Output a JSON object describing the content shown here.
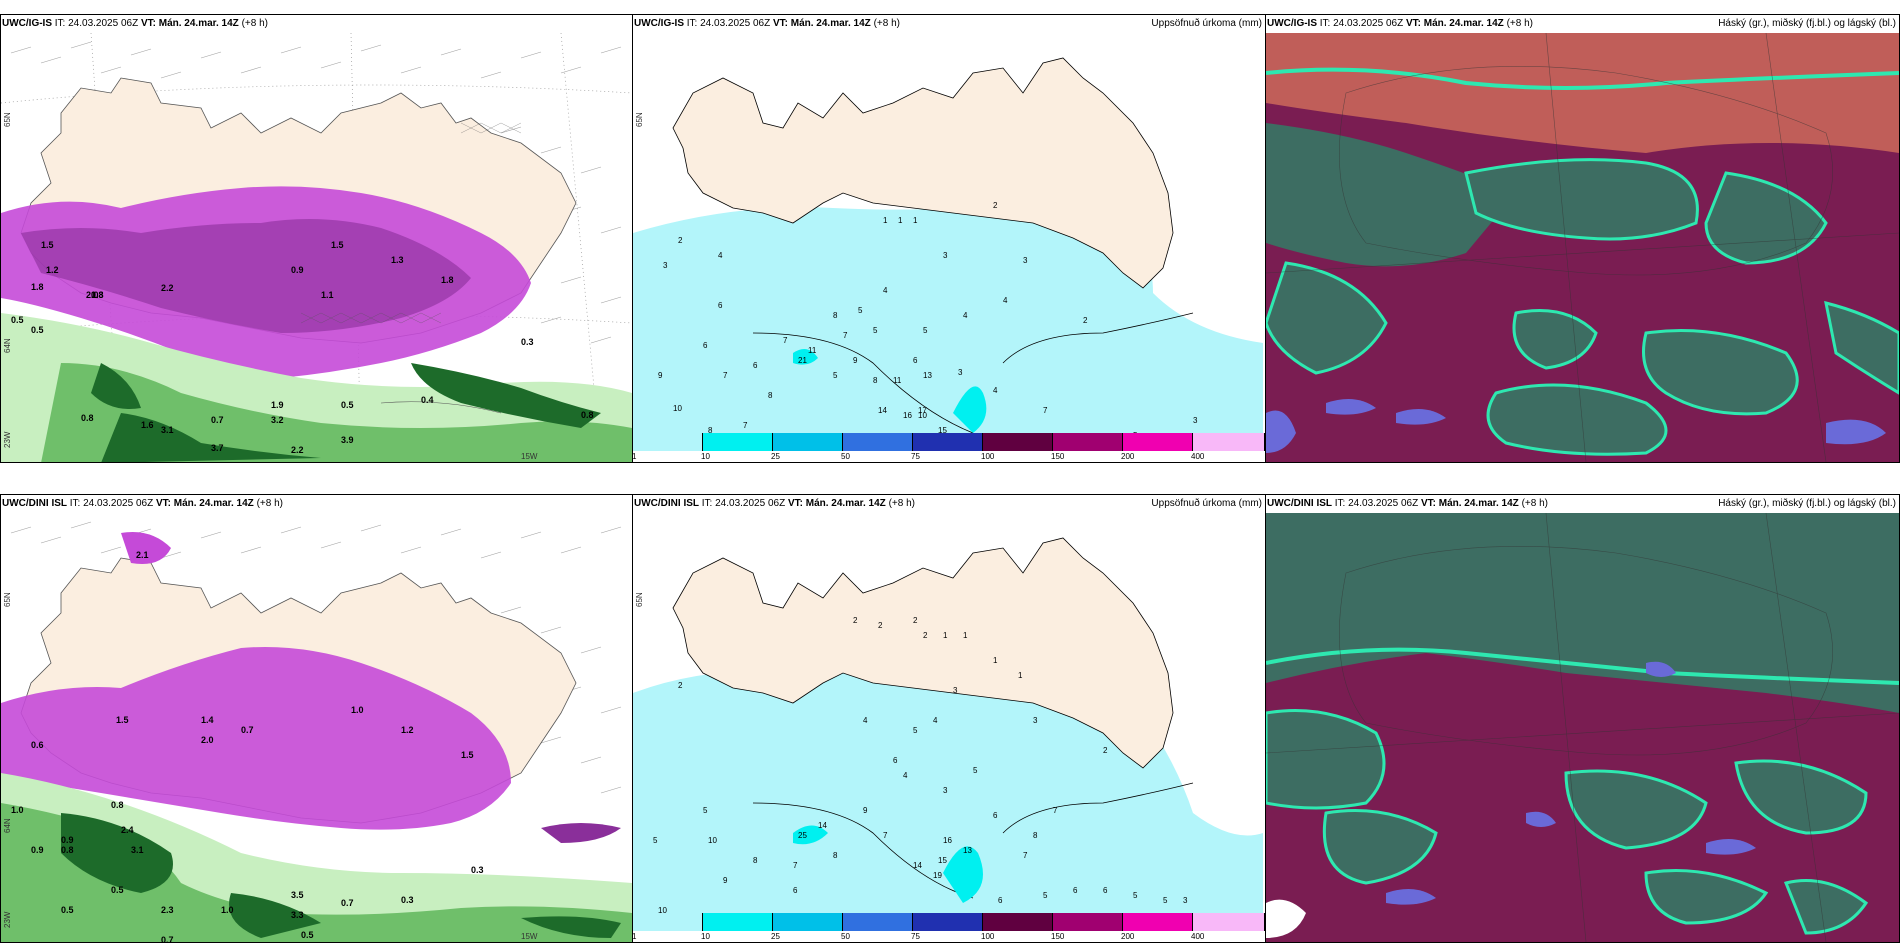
{
  "panels": [
    {
      "id": "p1",
      "model": "UWC/IG-IS",
      "it_label": "IT:",
      "it": "24.03.2025 06Z",
      "vt_label": "VT:",
      "vt": "Mán. 24.mar. 14Z",
      "lead": "(+8 h)",
      "right_title": "",
      "lat_label": "65N",
      "lat_label2": "64N",
      "lon_label": "15W",
      "lat_label3": "23W"
    },
    {
      "id": "p2",
      "model": "UWC/IG-IS",
      "it_label": "IT:",
      "it": "24.03.2025 06Z",
      "vt_label": "VT:",
      "vt": "Mán. 24.mar. 14Z",
      "lead": "(+8 h)",
      "right_title": "Uppsöfnuð úrkoma (mm)",
      "lat_label": "65N"
    },
    {
      "id": "p3",
      "model": "UWC/IG-IS",
      "it_label": "IT:",
      "it": "24.03.2025 06Z",
      "vt_label": "VT:",
      "vt": "Mán. 24.mar. 14Z",
      "lead": "(+8 h)",
      "right_title": "Háský (gr.), miðský (fj.bl.) og lágský (bl.)"
    },
    {
      "id": "p4",
      "model": "UWC/DINI ISL",
      "it_label": "IT:",
      "it": "24.03.2025 06Z",
      "vt_label": "VT:",
      "vt": "Mán. 24.mar. 14Z",
      "lead": "(+8 h)",
      "right_title": "",
      "lat_label": "65N",
      "lat_label2": "64N",
      "lon_label": "15W",
      "lat_label3": "23W"
    },
    {
      "id": "p5",
      "model": "UWC/DINI ISL",
      "it_label": "IT:",
      "it": "24.03.2025 06Z",
      "vt_label": "VT:",
      "vt": "Mán. 24.mar. 14Z",
      "lead": "(+8 h)",
      "right_title": "Uppsöfnuð úrkoma (mm)",
      "lat_label": "65N"
    },
    {
      "id": "p6",
      "model": "UWC/DINI ISL",
      "it_label": "IT:",
      "it": "24.03.2025 06Z",
      "vt_label": "VT:",
      "vt": "Mán. 24.mar. 14Z",
      "lead": "(+8 h)",
      "right_title": "Háský (gr.), miðský (fj.bl.) og lágský (bl.)"
    }
  ],
  "precip_legend": {
    "ticks": [
      "1",
      "10",
      "25",
      "50",
      "75",
      "100",
      "150",
      "200",
      "400"
    ],
    "colors": [
      "#b3f5fa",
      "#00f0f0",
      "#00c0e8",
      "#3070e0",
      "#2030b0",
      "#600040",
      "#a00070",
      "#f000b0",
      "#f8b8f8"
    ]
  },
  "precip_values_top": [
    "2",
    "3",
    "4",
    "6",
    "6",
    "7",
    "9",
    "10",
    "8",
    "7",
    "7",
    "8",
    "6",
    "8",
    "9",
    "5",
    "4",
    "4",
    "3",
    "2",
    "1",
    "1",
    "1",
    "2",
    "3",
    "4",
    "5",
    "5",
    "7",
    "8",
    "11",
    "13",
    "10",
    "15",
    "14",
    "14",
    "16",
    "17",
    "21",
    "11",
    "4",
    "3",
    "2",
    "6",
    "7",
    "5",
    "3",
    "4",
    "4",
    "3",
    "5"
  ],
  "precip_values_bottom": [
    "2",
    "5",
    "5",
    "10",
    "10",
    "9",
    "8",
    "7",
    "6",
    "8",
    "9",
    "7",
    "6",
    "5",
    "4",
    "3",
    "2",
    "1",
    "1",
    "2",
    "2",
    "2",
    "1",
    "1",
    "4",
    "3",
    "5",
    "6",
    "7",
    "8",
    "13",
    "16",
    "19",
    "15",
    "14",
    "25",
    "14",
    "4",
    "3",
    "2",
    "5",
    "6",
    "6",
    "5",
    "5",
    "6",
    "7",
    "3"
  ],
  "wind_values_top": [
    "1.5",
    "1.2",
    "1.8",
    "0.8",
    "0.5",
    "0.5",
    "0.8",
    "1.3",
    "2.0",
    "2.2",
    "3.1",
    "3.7",
    "1.6",
    "1.9",
    "1.5",
    "0.9",
    "1.1",
    "1.3",
    "1.8",
    "0.7",
    "0.5",
    "0.4",
    "0.3",
    "0.8",
    "3.2",
    "3.9",
    "2.2"
  ],
  "wind_values_bottom": [
    "2.1",
    "1.5",
    "1.0",
    "0.9",
    "0.8",
    "2.4",
    "3.1",
    "2.0",
    "1.4",
    "0.9",
    "0.6",
    "0.5",
    "0.3",
    "0.7",
    "1.0",
    "1.2",
    "1.5",
    "0.8",
    "0.5",
    "0.3",
    "0.7",
    "2.3",
    "1.0",
    "0.7",
    "3.3",
    "3.5",
    "0.5"
  ],
  "colors": {
    "land": "#fbeee0",
    "sea_precip": "#b3f5fa",
    "purple": "#c54ad8",
    "purple_dark": "#8a2f9a",
    "green_light": "#c8efc0",
    "green_mid": "#6fbf6a",
    "green_dark": "#1d6b2a",
    "cloud_low": "#3d6d62",
    "cloud_mid": "#7a1d52",
    "cloud_high": "#c8665a",
    "cloud_edge": "#2ee8b0"
  }
}
